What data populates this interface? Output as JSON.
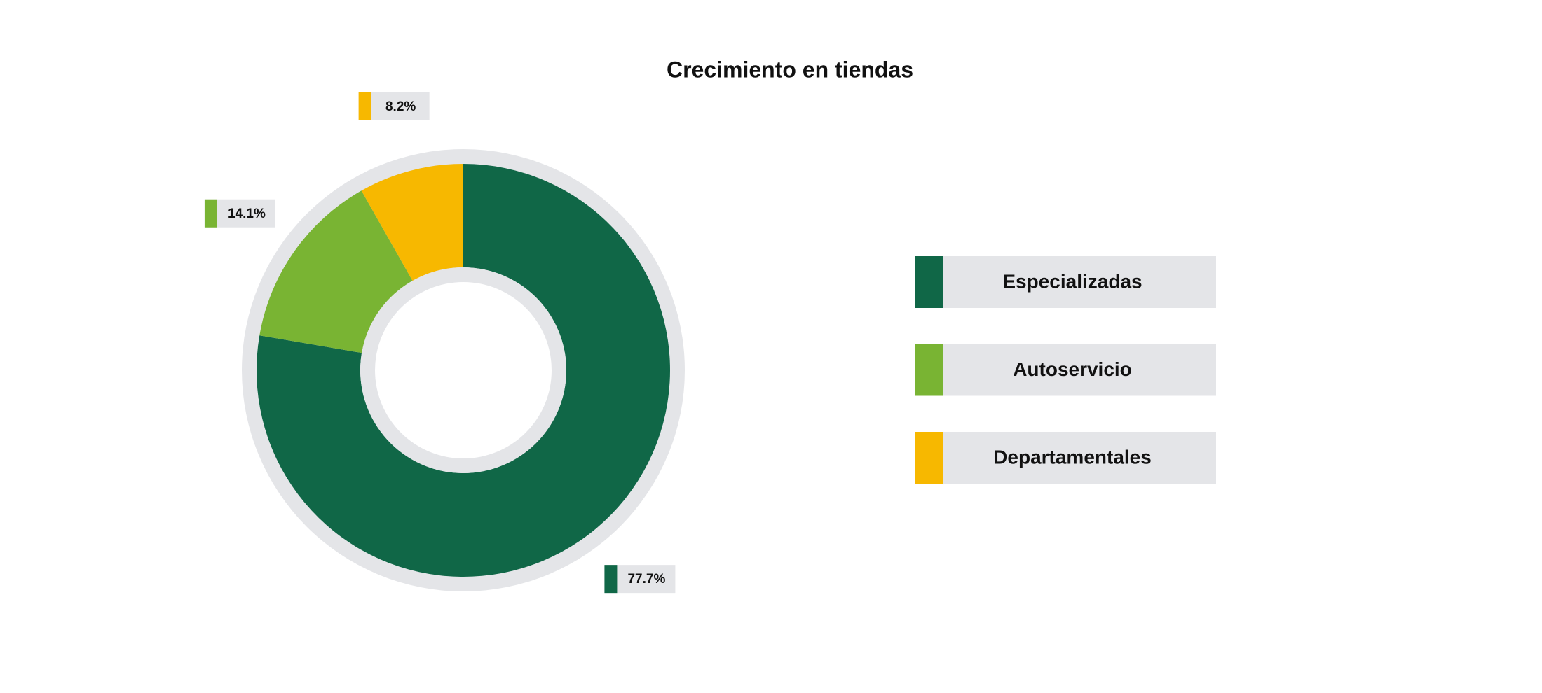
{
  "chart_data": {
    "type": "donut",
    "title": "Crecimiento en tiendas",
    "categories": [
      "Especializadas",
      "Autoservicio",
      "Departamentales"
    ],
    "values": [
      77.7,
      14.1,
      8.2
    ],
    "value_labels": [
      "77.7%",
      "14.1%",
      "8.2%"
    ],
    "colors": [
      "#106747",
      "#79b433",
      "#f7b800"
    ],
    "legend": "right"
  }
}
